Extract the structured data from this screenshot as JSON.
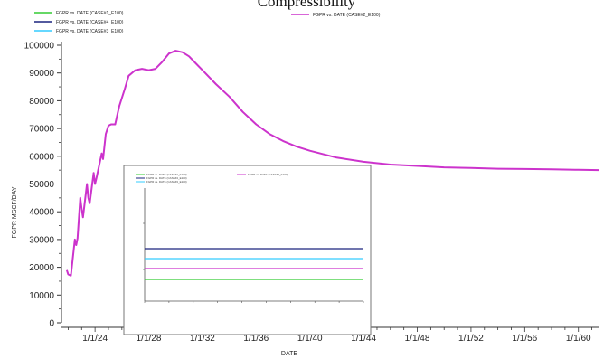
{
  "chart_data": {
    "type": "line",
    "title": "Compressibility",
    "xlabel": "DATE",
    "ylabel": "FGPR   MSCF/DAY",
    "ylim": [
      0,
      100000
    ],
    "xlim": [
      2021.5,
      2061.5
    ],
    "y_ticks": [
      0,
      10000,
      20000,
      30000,
      40000,
      50000,
      60000,
      70000,
      80000,
      90000,
      100000
    ],
    "x_ticks": [
      {
        "x": 2024,
        "label": "1/1/24"
      },
      {
        "x": 2028,
        "label": "1/1/28"
      },
      {
        "x": 2032,
        "label": "1/1/32"
      },
      {
        "x": 2036,
        "label": "1/1/36"
      },
      {
        "x": 2040,
        "label": "1/1/40"
      },
      {
        "x": 2044,
        "label": "1/1/44"
      },
      {
        "x": 2048,
        "label": "1/1/48"
      },
      {
        "x": 2052,
        "label": "1/1/52"
      },
      {
        "x": 2056,
        "label": "1/1/56"
      },
      {
        "x": 2060,
        "label": "1/1/60"
      }
    ],
    "legend": [
      {
        "label": "FGPR  vs.  DATE (CASE#1_E100)",
        "color": "#33cc33"
      },
      {
        "label": "FGPR  vs.  DATE (CASE#4_E100)",
        "color": "#1a237e"
      },
      {
        "label": "FGPR  vs.  DATE (CASE#3_E100)",
        "color": "#33ccff"
      },
      {
        "label": "FGPR  vs.  DATE (CASE#2_E100)",
        "color": "#cc33cc"
      }
    ],
    "series": [
      {
        "name": "FGPR  vs.  DATE (CASE#2_E100)",
        "color": "#cc33cc",
        "x": [
          2021.9,
          2022.0,
          2022.2,
          2022.5,
          2022.6,
          2022.7,
          2022.9,
          2023.0,
          2023.1,
          2023.4,
          2023.5,
          2023.6,
          2023.9,
          2024.0,
          2024.1,
          2024.5,
          2024.6,
          2024.8,
          2025.0,
          2025.2,
          2025.5,
          2025.8,
          2026.2,
          2026.5,
          2027.0,
          2027.5,
          2028.0,
          2028.5,
          2029.0,
          2029.5,
          2030.0,
          2030.5,
          2031.0,
          2031.5,
          2032.0,
          2033.0,
          2034.0,
          2035.0,
          2036.0,
          2037.0,
          2038.0,
          2039.0,
          2040.0,
          2042.0,
          2044.0,
          2046.0,
          2048.0,
          2050.0,
          2052.0,
          2054.0,
          2056.0,
          2058.0,
          2060.0,
          2061.5
        ],
        "y": [
          19000,
          17500,
          17000,
          30000,
          28000,
          30500,
          45000,
          41000,
          38000,
          50000,
          45000,
          43000,
          54000,
          50000,
          52000,
          61000,
          59000,
          68000,
          71000,
          71500,
          71500,
          78000,
          84000,
          89000,
          91000,
          91500,
          91000,
          91500,
          94000,
          97000,
          98000,
          97500,
          96000,
          93500,
          91000,
          86000,
          81500,
          76000,
          71500,
          68000,
          65500,
          63500,
          62000,
          59500,
          58000,
          57000,
          56500,
          56000,
          55800,
          55500,
          55400,
          55300,
          55100,
          55000
        ]
      }
    ],
    "inset": {
      "lines": [
        {
          "name": "FGPR  vs.  DATE (CASE#4_E100)",
          "color": "#1a237e"
        },
        {
          "name": "FGPR  vs.  DATE (CASE#3_E100)",
          "color": "#33ccff"
        },
        {
          "name": "FGPR  vs.  DATE (CASE#2_E100)",
          "color": "#cc33cc"
        },
        {
          "name": "FGPR  vs.  DATE (CASE#1_E100)",
          "color": "#33cc33"
        }
      ]
    }
  }
}
